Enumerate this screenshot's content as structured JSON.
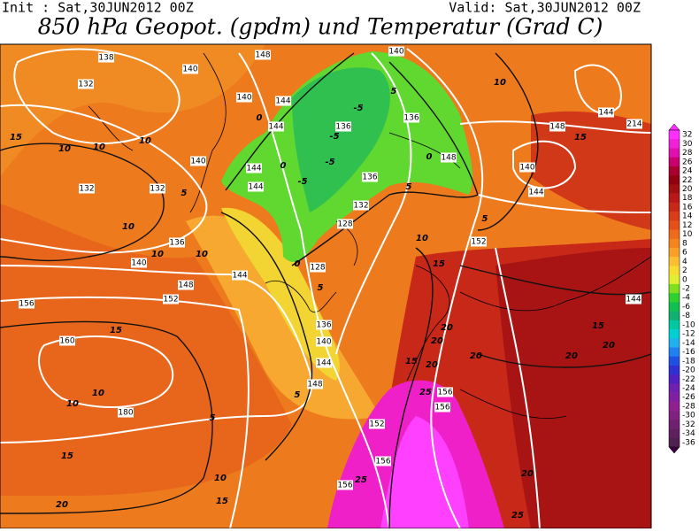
{
  "header": {
    "init": "Init : Sat,30JUN2012 00Z",
    "valid": "Valid: Sat,30JUN2012 00Z",
    "title": "850 hPa Geopot. (gpdm) und Temperatur (Grad C)"
  },
  "colorbar": {
    "levels": [
      32,
      30,
      28,
      26,
      24,
      22,
      20,
      18,
      16,
      14,
      12,
      10,
      8,
      6,
      4,
      2,
      0,
      -2,
      -4,
      -6,
      -8,
      -10,
      -12,
      -14,
      -16,
      -18,
      -20,
      -22,
      -24,
      -26,
      -28,
      -30,
      -32,
      -34,
      -36
    ],
    "colors": [
      "#ff30ff",
      "#f020d8",
      "#e010b0",
      "#c80070",
      "#a80030",
      "#900010",
      "#a01010",
      "#b81818",
      "#c82818",
      "#d83c18",
      "#e45018",
      "#ee6a1c",
      "#f4841e",
      "#f8a028",
      "#fac034",
      "#f8dc30",
      "#e0f030",
      "#80e020",
      "#30d030",
      "#10c050",
      "#10b070",
      "#00c8a0",
      "#00d0d0",
      "#20b0f0",
      "#2080f0",
      "#2050e0",
      "#3030d0",
      "#5020c0",
      "#7020b0",
      "#8020a0",
      "#902090",
      "#802080",
      "#702070",
      "#602060",
      "#502050"
    ]
  },
  "geopotential_labels": [
    138,
    140,
    148,
    140,
    132,
    140,
    144,
    144,
    136,
    136,
    144,
    148,
    214,
    140,
    144,
    144,
    148,
    140,
    136,
    132,
    132,
    144,
    132,
    128,
    136,
    152,
    140,
    144,
    128,
    148,
    152,
    156,
    144,
    136,
    160,
    140,
    144,
    148,
    156,
    156,
    152,
    180,
    156,
    156
  ],
  "temperature_labels": [
    15,
    10,
    10,
    10,
    10,
    10,
    10,
    15,
    10,
    10,
    15,
    20,
    5,
    10,
    15,
    5,
    20,
    20,
    20,
    15,
    20,
    20,
    20,
    15,
    20,
    25,
    25,
    25,
    5,
    10,
    5,
    -5,
    0,
    15,
    -5,
    -5,
    -5,
    0,
    0,
    5,
    10,
    15,
    5,
    0,
    5
  ]
}
